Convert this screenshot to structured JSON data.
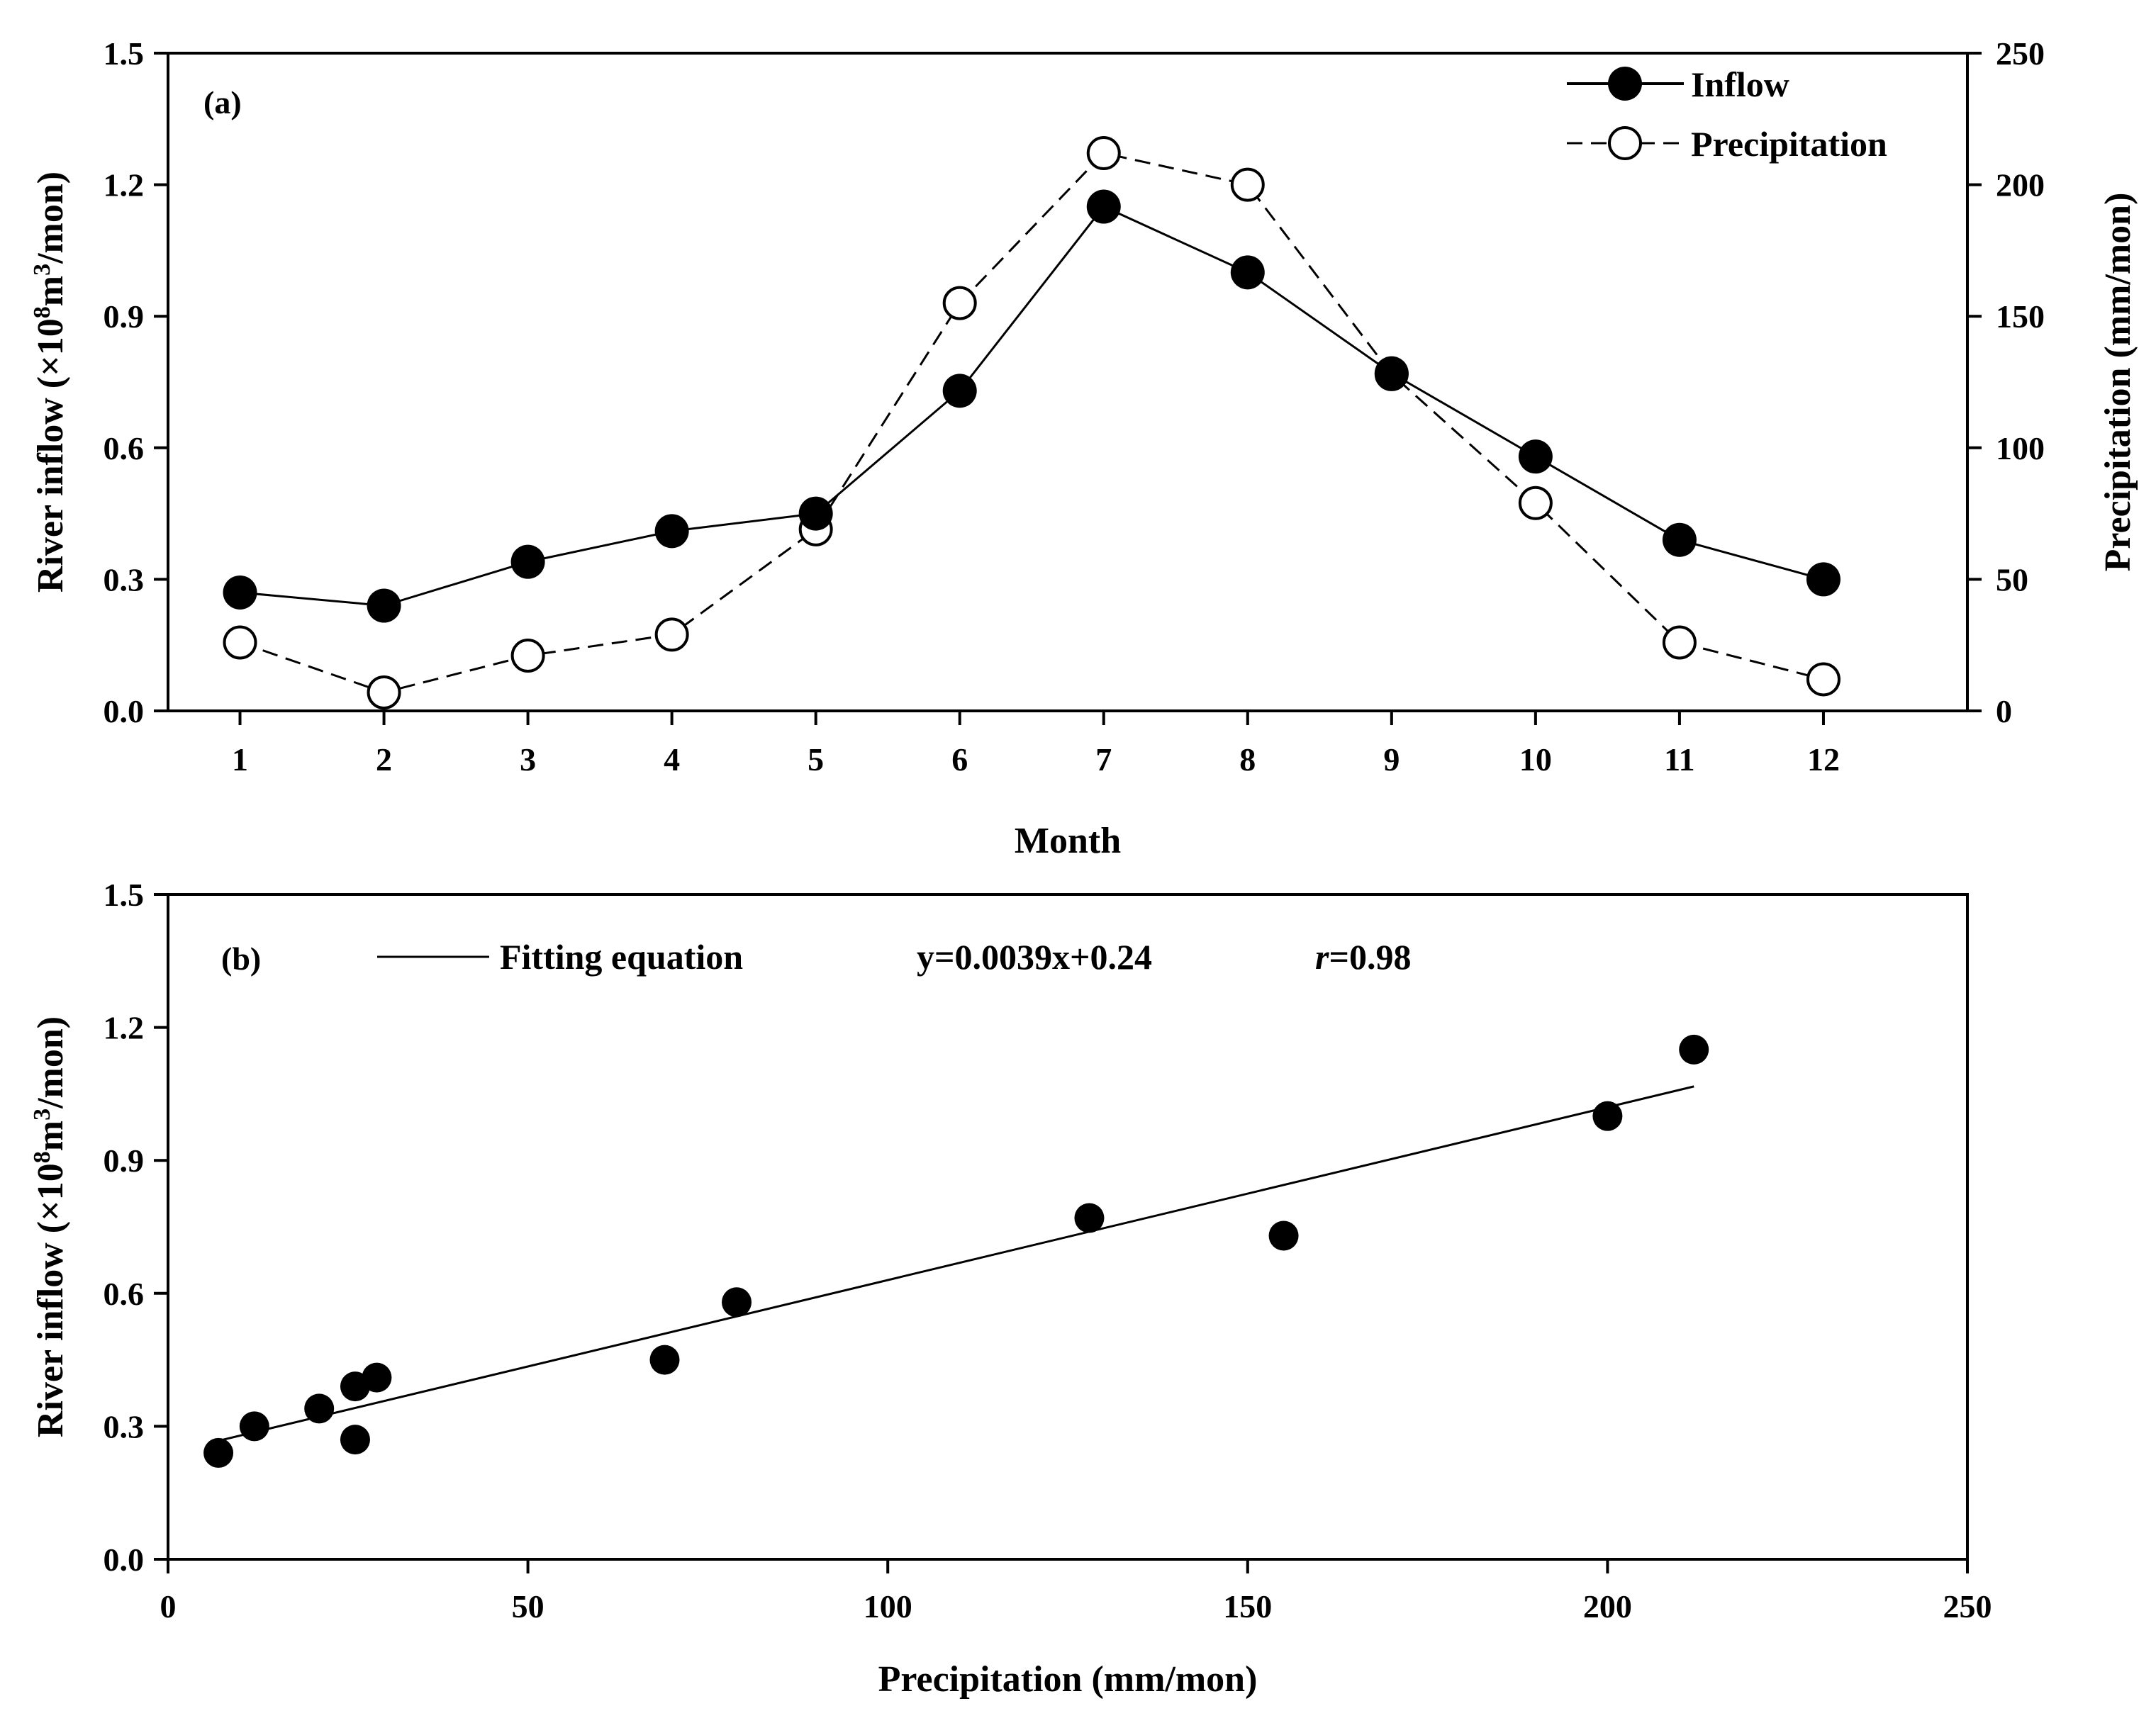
{
  "chart_data": [
    {
      "panel": "(a)",
      "type": "line",
      "xlabel": "Month",
      "ylabel_parts": [
        "River inflow (×10",
        "8",
        "m",
        "3",
        "/mon)"
      ],
      "y2label": "Precipitation (mm/mon)",
      "categories": [
        "1",
        "2",
        "3",
        "4",
        "5",
        "6",
        "7",
        "8",
        "9",
        "10",
        "11",
        "12"
      ],
      "ylim": [
        0,
        1.5
      ],
      "y2lim": [
        0,
        250
      ],
      "yticks": [
        "0.0",
        "0.3",
        "0.6",
        "0.9",
        "1.2",
        "1.5"
      ],
      "y2ticks": [
        "0",
        "50",
        "100",
        "150",
        "200",
        "250"
      ],
      "legend_position": "top-right",
      "series": [
        {
          "name": "Inflow",
          "axis": "left",
          "marker": "filled-circle",
          "line": "solid",
          "values": [
            0.27,
            0.24,
            0.34,
            0.41,
            0.45,
            0.73,
            1.15,
            1.0,
            0.77,
            0.58,
            0.39,
            0.3
          ]
        },
        {
          "name": "Precipitation",
          "axis": "right",
          "marker": "open-circle",
          "line": "dashed",
          "values": [
            26,
            7,
            21,
            29,
            69,
            155,
            212,
            200,
            128,
            79,
            26,
            12
          ]
        }
      ]
    },
    {
      "panel": "(b)",
      "type": "scatter",
      "xlabel": "Precipitation (mm/mon)",
      "ylabel_parts": [
        "River inflow (×10",
        "8",
        "m",
        "3",
        "/mon)"
      ],
      "xlim": [
        0,
        250
      ],
      "ylim": [
        0,
        1.5
      ],
      "xticks": [
        "0",
        "50",
        "100",
        "150",
        "200",
        "250"
      ],
      "yticks": [
        "0.0",
        "0.3",
        "0.6",
        "0.9",
        "1.2",
        "1.5"
      ],
      "legend": {
        "label": "Fitting equation",
        "equation": "y=0.0039x+0.24",
        "r_symbol": "r",
        "r_value": "=0.98"
      },
      "fit": {
        "slope": 0.0039,
        "intercept": 0.24,
        "x_range": [
          7,
          212
        ]
      },
      "points": [
        {
          "x": 7,
          "y": 0.24
        },
        {
          "x": 12,
          "y": 0.3
        },
        {
          "x": 21,
          "y": 0.34
        },
        {
          "x": 26,
          "y": 0.39
        },
        {
          "x": 26,
          "y": 0.27
        },
        {
          "x": 29,
          "y": 0.41
        },
        {
          "x": 69,
          "y": 0.45
        },
        {
          "x": 79,
          "y": 0.58
        },
        {
          "x": 128,
          "y": 0.77
        },
        {
          "x": 155,
          "y": 0.73
        },
        {
          "x": 200,
          "y": 1.0
        },
        {
          "x": 212,
          "y": 1.15
        }
      ]
    }
  ]
}
